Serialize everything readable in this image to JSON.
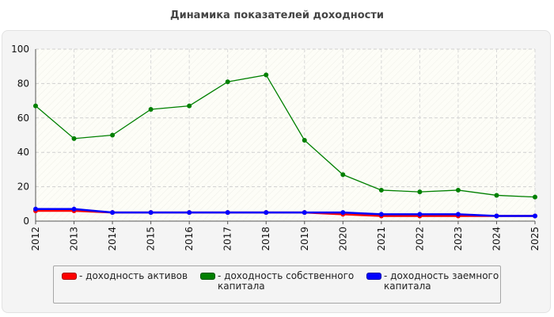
{
  "chart_data": {
    "type": "line",
    "title": "Динамика показателей доходности",
    "categories": [
      "2012",
      "2013",
      "2014",
      "2015",
      "2016",
      "2017",
      "2018",
      "2019",
      "2020",
      "2021",
      "2022",
      "2023",
      "2024",
      "2025"
    ],
    "ylim": [
      0,
      100
    ],
    "yticks": [
      0,
      20,
      40,
      60,
      80,
      100
    ],
    "grid": true,
    "legend_position": "bottom",
    "series": [
      {
        "name": "- доходность активов",
        "color": "#ff0000",
        "values": [
          6,
          6,
          5,
          5,
          5,
          5,
          5,
          5,
          4,
          3,
          3,
          3,
          3,
          3
        ]
      },
      {
        "name": "- доходность собственного\nкапитала",
        "color": "#008000",
        "values": [
          67,
          48,
          50,
          65,
          67,
          81,
          85,
          47,
          27,
          18,
          17,
          18,
          15,
          14
        ]
      },
      {
        "name": "- доходность заемного\nкапитала",
        "color": "#0000ff",
        "values": [
          7,
          7,
          5,
          5,
          5,
          5,
          5,
          5,
          5,
          4,
          4,
          4,
          3,
          3
        ]
      }
    ]
  }
}
